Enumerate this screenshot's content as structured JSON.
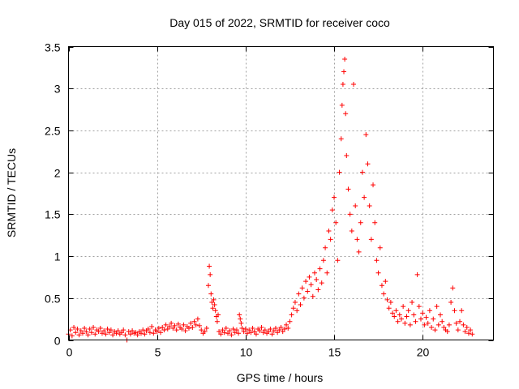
{
  "chart_data": {
    "type": "scatter",
    "title": "Day 015 of 2022, SRMTID for receiver coco",
    "xlabel": "GPS time / hours",
    "ylabel": "SRMTID / TECUs",
    "xlim": [
      0,
      24
    ],
    "ylim": [
      0,
      3.5
    ],
    "x_ticks": [
      0,
      5,
      10,
      15,
      20
    ],
    "x_tick_labels": [
      "0",
      "5",
      "10",
      "15",
      "20"
    ],
    "y_ticks": [
      0,
      0.5,
      1,
      1.5,
      2,
      2.5,
      3,
      3.5
    ],
    "y_tick_labels": [
      "0",
      "0.5",
      "1",
      "1.5",
      "2",
      "2.5",
      "3",
      "3.5"
    ],
    "grid": true,
    "marker": "+",
    "color": "#ff0000",
    "series": [
      {
        "name": "SRMTID",
        "points": [
          [
            0.0,
            0.07
          ],
          [
            0.1,
            0.12
          ],
          [
            0.2,
            0.05
          ],
          [
            0.3,
            0.15
          ],
          [
            0.4,
            0.09
          ],
          [
            0.5,
            0.13
          ],
          [
            0.6,
            0.06
          ],
          [
            0.7,
            0.11
          ],
          [
            0.8,
            0.08
          ],
          [
            0.9,
            0.14
          ],
          [
            1.0,
            0.1
          ],
          [
            1.1,
            0.06
          ],
          [
            1.2,
            0.13
          ],
          [
            1.3,
            0.09
          ],
          [
            1.4,
            0.15
          ],
          [
            1.5,
            0.07
          ],
          [
            1.6,
            0.12
          ],
          [
            1.7,
            0.1
          ],
          [
            1.8,
            0.14
          ],
          [
            1.9,
            0.08
          ],
          [
            2.0,
            0.11
          ],
          [
            2.1,
            0.07
          ],
          [
            2.2,
            0.13
          ],
          [
            2.3,
            0.09
          ],
          [
            2.4,
            0.12
          ],
          [
            2.5,
            0.06
          ],
          [
            2.6,
            0.1
          ],
          [
            2.7,
            0.08
          ],
          [
            2.8,
            0.11
          ],
          [
            2.9,
            0.07
          ],
          [
            3.0,
            0.09
          ],
          [
            3.1,
            0.12
          ],
          [
            3.2,
            0.06
          ],
          [
            3.3,
            0.0
          ],
          [
            3.4,
            0.1
          ],
          [
            3.5,
            0.07
          ],
          [
            3.6,
            0.11
          ],
          [
            3.7,
            0.08
          ],
          [
            3.8,
            0.09
          ],
          [
            3.9,
            0.06
          ],
          [
            4.0,
            0.1
          ],
          [
            4.1,
            0.08
          ],
          [
            4.2,
            0.12
          ],
          [
            4.3,
            0.07
          ],
          [
            4.4,
            0.11
          ],
          [
            4.5,
            0.13
          ],
          [
            4.6,
            0.09
          ],
          [
            4.7,
            0.16
          ],
          [
            4.8,
            0.08
          ],
          [
            4.9,
            0.12
          ],
          [
            5.0,
            0.1
          ],
          [
            5.1,
            0.14
          ],
          [
            5.2,
            0.09
          ],
          [
            5.3,
            0.15
          ],
          [
            5.4,
            0.12
          ],
          [
            5.5,
            0.18
          ],
          [
            5.6,
            0.13
          ],
          [
            5.7,
            0.16
          ],
          [
            5.8,
            0.2
          ],
          [
            5.9,
            0.14
          ],
          [
            6.0,
            0.17
          ],
          [
            6.1,
            0.12
          ],
          [
            6.2,
            0.19
          ],
          [
            6.3,
            0.15
          ],
          [
            6.4,
            0.13
          ],
          [
            6.5,
            0.18
          ],
          [
            6.6,
            0.11
          ],
          [
            6.7,
            0.16
          ],
          [
            6.8,
            0.14
          ],
          [
            6.9,
            0.2
          ],
          [
            7.0,
            0.15
          ],
          [
            7.1,
            0.22
          ],
          [
            7.2,
            0.18
          ],
          [
            7.3,
            0.25
          ],
          [
            7.4,
            0.17
          ],
          [
            7.5,
            0.12
          ],
          [
            7.6,
            0.08
          ],
          [
            7.7,
            0.1
          ],
          [
            7.8,
            0.14
          ],
          [
            7.9,
            0.65
          ],
          [
            7.95,
            0.88
          ],
          [
            8.0,
            0.78
          ],
          [
            8.05,
            0.55
          ],
          [
            8.1,
            0.45
          ],
          [
            8.15,
            0.38
          ],
          [
            8.2,
            0.48
          ],
          [
            8.25,
            0.42
          ],
          [
            8.3,
            0.35
          ],
          [
            8.35,
            0.28
          ],
          [
            8.4,
            0.22
          ],
          [
            8.45,
            0.3
          ],
          [
            8.5,
            0.1
          ],
          [
            8.6,
            0.07
          ],
          [
            8.7,
            0.12
          ],
          [
            8.8,
            0.09
          ],
          [
            8.9,
            0.14
          ],
          [
            9.0,
            0.08
          ],
          [
            9.1,
            0.11
          ],
          [
            9.2,
            0.06
          ],
          [
            9.3,
            0.13
          ],
          [
            9.4,
            0.09
          ],
          [
            9.5,
            0.12
          ],
          [
            9.6,
            0.08
          ],
          [
            9.65,
            0.3
          ],
          [
            9.7,
            0.25
          ],
          [
            9.75,
            0.2
          ],
          [
            9.8,
            0.14
          ],
          [
            9.9,
            0.1
          ],
          [
            10.0,
            0.13
          ],
          [
            10.1,
            0.08
          ],
          [
            10.2,
            0.12
          ],
          [
            10.3,
            0.09
          ],
          [
            10.4,
            0.14
          ],
          [
            10.5,
            0.1
          ],
          [
            10.6,
            0.07
          ],
          [
            10.7,
            0.13
          ],
          [
            10.8,
            0.11
          ],
          [
            10.9,
            0.15
          ],
          [
            11.0,
            0.09
          ],
          [
            11.1,
            0.12
          ],
          [
            11.2,
            0.08
          ],
          [
            11.3,
            0.1
          ],
          [
            11.4,
            0.13
          ],
          [
            11.5,
            0.07
          ],
          [
            11.6,
            0.11
          ],
          [
            11.7,
            0.14
          ],
          [
            11.8,
            0.09
          ],
          [
            11.9,
            0.12
          ],
          [
            12.0,
            0.15
          ],
          [
            12.1,
            0.1
          ],
          [
            12.2,
            0.13
          ],
          [
            12.3,
            0.18
          ],
          [
            12.4,
            0.14
          ],
          [
            12.5,
            0.22
          ],
          [
            12.6,
            0.3
          ],
          [
            12.7,
            0.38
          ],
          [
            12.8,
            0.45
          ],
          [
            12.9,
            0.35
          ],
          [
            13.0,
            0.55
          ],
          [
            13.1,
            0.42
          ],
          [
            13.2,
            0.62
          ],
          [
            13.3,
            0.5
          ],
          [
            13.4,
            0.7
          ],
          [
            13.5,
            0.58
          ],
          [
            13.6,
            0.75
          ],
          [
            13.7,
            0.66
          ],
          [
            13.8,
            0.52
          ],
          [
            13.9,
            0.8
          ],
          [
            14.0,
            0.72
          ],
          [
            14.1,
            0.6
          ],
          [
            14.2,
            0.85
          ],
          [
            14.3,
            0.68
          ],
          [
            14.4,
            0.95
          ],
          [
            14.5,
            1.1
          ],
          [
            14.6,
            0.8
          ],
          [
            14.7,
            1.3
          ],
          [
            14.8,
            1.2
          ],
          [
            14.9,
            1.55
          ],
          [
            15.0,
            1.7
          ],
          [
            15.1,
            1.4
          ],
          [
            15.2,
            0.95
          ],
          [
            15.3,
            2.0
          ],
          [
            15.4,
            2.4
          ],
          [
            15.45,
            2.8
          ],
          [
            15.5,
            3.05
          ],
          [
            15.55,
            3.2
          ],
          [
            15.6,
            3.35
          ],
          [
            15.65,
            2.7
          ],
          [
            15.7,
            2.2
          ],
          [
            15.8,
            1.8
          ],
          [
            15.9,
            1.5
          ],
          [
            16.0,
            1.3
          ],
          [
            16.1,
            3.05
          ],
          [
            16.2,
            1.6
          ],
          [
            16.3,
            1.2
          ],
          [
            16.4,
            1.05
          ],
          [
            16.5,
            1.4
          ],
          [
            16.6,
            2.0
          ],
          [
            16.7,
            1.7
          ],
          [
            16.8,
            2.45
          ],
          [
            16.9,
            2.1
          ],
          [
            17.0,
            1.6
          ],
          [
            17.1,
            1.2
          ],
          [
            17.2,
            1.85
          ],
          [
            17.3,
            1.4
          ],
          [
            17.4,
            0.95
          ],
          [
            17.5,
            0.8
          ],
          [
            17.6,
            1.1
          ],
          [
            17.7,
            0.65
          ],
          [
            17.8,
            0.55
          ],
          [
            17.9,
            0.7
          ],
          [
            18.0,
            0.48
          ],
          [
            18.1,
            0.38
          ],
          [
            18.2,
            0.45
          ],
          [
            18.3,
            0.32
          ],
          [
            18.4,
            0.28
          ],
          [
            18.5,
            0.35
          ],
          [
            18.6,
            0.22
          ],
          [
            18.7,
            0.3
          ],
          [
            18.8,
            0.25
          ],
          [
            18.9,
            0.4
          ],
          [
            19.0,
            0.2
          ],
          [
            19.1,
            0.28
          ],
          [
            19.2,
            0.35
          ],
          [
            19.3,
            0.18
          ],
          [
            19.4,
            0.45
          ],
          [
            19.5,
            0.3
          ],
          [
            19.6,
            0.22
          ],
          [
            19.7,
            0.78
          ],
          [
            19.8,
            0.4
          ],
          [
            19.9,
            0.25
          ],
          [
            20.0,
            0.32
          ],
          [
            20.1,
            0.18
          ],
          [
            20.2,
            0.27
          ],
          [
            20.3,
            0.2
          ],
          [
            20.4,
            0.35
          ],
          [
            20.5,
            0.15
          ],
          [
            20.6,
            0.25
          ],
          [
            20.7,
            0.12
          ],
          [
            20.8,
            0.4
          ],
          [
            20.9,
            0.18
          ],
          [
            21.0,
            0.3
          ],
          [
            21.1,
            0.22
          ],
          [
            21.2,
            0.15
          ],
          [
            21.3,
            0.12
          ],
          [
            21.4,
            0.1
          ],
          [
            21.5,
            0.18
          ],
          [
            21.6,
            0.45
          ],
          [
            21.7,
            0.62
          ],
          [
            21.8,
            0.35
          ],
          [
            21.9,
            0.2
          ],
          [
            22.0,
            0.12
          ],
          [
            22.1,
            0.22
          ],
          [
            22.2,
            0.35
          ],
          [
            22.3,
            0.18
          ],
          [
            22.4,
            0.1
          ],
          [
            22.5,
            0.15
          ],
          [
            22.6,
            0.08
          ],
          [
            22.7,
            0.12
          ],
          [
            22.8,
            0.07
          ]
        ]
      }
    ]
  }
}
